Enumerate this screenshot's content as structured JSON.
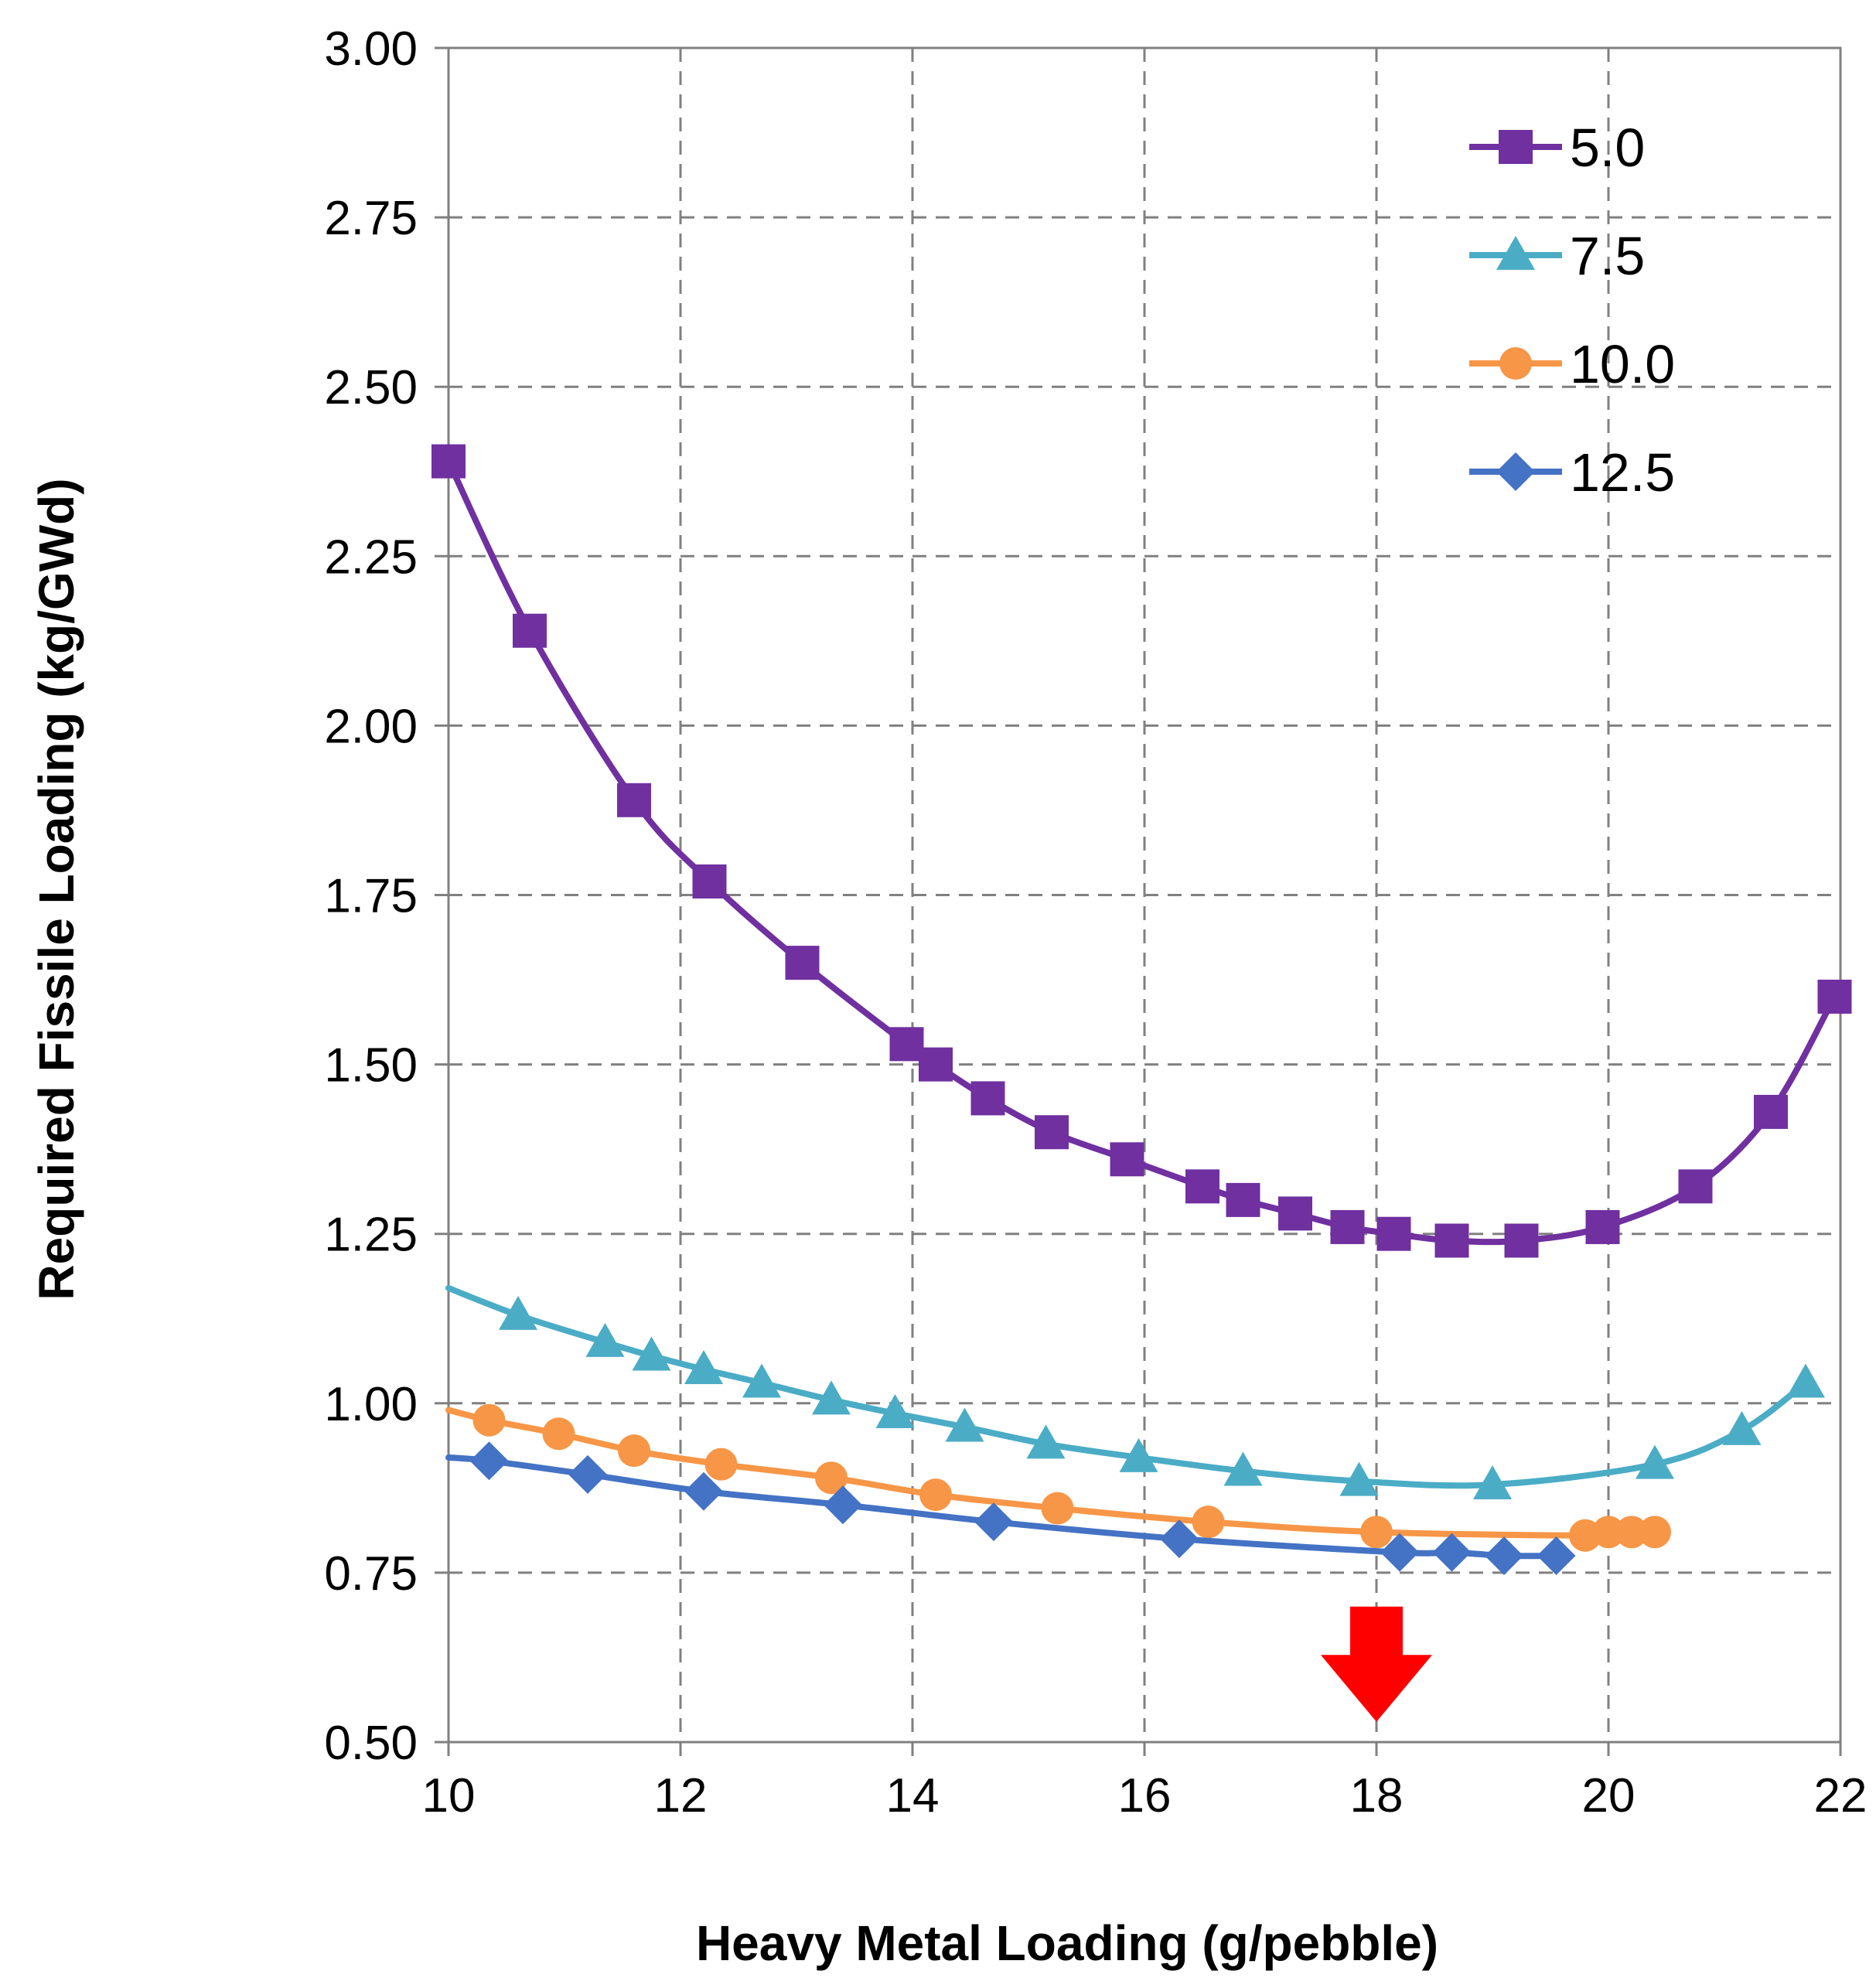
{
  "chart_data": {
    "type": "line",
    "title": "",
    "xlabel": "Heavy Metal Loading (g/pebble)",
    "ylabel": "Required Fissile Loading (kg/GWd)",
    "xlim": [
      10,
      22
    ],
    "ylim": [
      0.5,
      3.0
    ],
    "x_ticks": [
      10,
      12,
      14,
      16,
      18,
      20,
      22
    ],
    "x_tick_labels": [
      "10",
      "12",
      "14",
      "16",
      "18",
      "20",
      "22"
    ],
    "y_ticks": [
      0.5,
      0.75,
      1.0,
      1.25,
      1.5,
      1.75,
      2.0,
      2.25,
      2.5,
      2.75,
      3.0
    ],
    "y_tick_labels": [
      "0.50",
      "0.75",
      "1.00",
      "1.25",
      "1.50",
      "1.75",
      "2.00",
      "2.25",
      "2.50",
      "2.75",
      "3.00"
    ],
    "grid": true,
    "legend_position": "top-right",
    "series": [
      {
        "name": "5.0",
        "color": "#7030A0",
        "marker": "square",
        "x": [
          10.0,
          10.7,
          11.6,
          12.25,
          13.05,
          13.95,
          14.2,
          14.65,
          15.2,
          15.85,
          16.5,
          16.85,
          17.3,
          17.75,
          18.15,
          18.65,
          19.25,
          19.95,
          20.75,
          21.4,
          21.95
        ],
        "y": [
          2.39,
          2.14,
          1.89,
          1.77,
          1.65,
          1.53,
          1.5,
          1.45,
          1.4,
          1.36,
          1.32,
          1.3,
          1.28,
          1.26,
          1.25,
          1.24,
          1.24,
          1.26,
          1.32,
          1.43,
          1.6
        ]
      },
      {
        "name": "7.5",
        "color": "#4BACC6",
        "marker": "triangle",
        "x": [
          10.6,
          11.35,
          11.75,
          12.2,
          12.7,
          13.3,
          13.85,
          14.45,
          15.15,
          15.95,
          16.85,
          17.85,
          19.0,
          20.4,
          21.15,
          21.7
        ],
        "y": [
          1.13,
          1.09,
          1.07,
          1.05,
          1.03,
          1.005,
          0.985,
          0.965,
          0.94,
          0.92,
          0.9,
          0.885,
          0.88,
          0.91,
          0.96,
          1.03
        ],
        "line_start": [
          10.0,
          1.17
        ]
      },
      {
        "name": "10.0",
        "color": "#F79646",
        "marker": "circle",
        "x": [
          10.35,
          10.95,
          11.6,
          12.35,
          13.3,
          14.2,
          15.25,
          16.55,
          18.0,
          19.8,
          20.0,
          20.2,
          20.4
        ],
        "y": [
          0.975,
          0.955,
          0.93,
          0.91,
          0.89,
          0.865,
          0.845,
          0.825,
          0.81,
          0.805,
          0.81,
          0.81,
          0.81
        ],
        "line_start": [
          10.0,
          0.99
        ]
      },
      {
        "name": "12.5",
        "color": "#4472C4",
        "marker": "diamond",
        "x": [
          10.35,
          11.2,
          12.2,
          13.4,
          14.7,
          16.3,
          18.2,
          18.65,
          19.1,
          19.55
        ],
        "y": [
          0.915,
          0.895,
          0.87,
          0.85,
          0.825,
          0.8,
          0.78,
          0.78,
          0.775,
          0.775
        ],
        "line_start": [
          10.0,
          0.92
        ]
      }
    ],
    "annotations": [
      {
        "type": "arrow",
        "direction": "down",
        "color": "#FF0000",
        "x": 18.0,
        "y_top": 0.7,
        "y_tip": 0.53
      }
    ]
  }
}
